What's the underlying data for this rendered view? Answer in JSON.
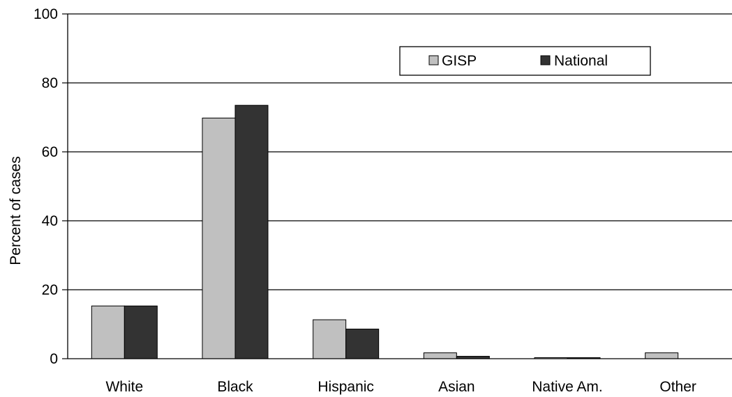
{
  "chart_data": {
    "type": "bar",
    "title": "",
    "xlabel": "",
    "ylabel": "Percent of cases",
    "ylim": [
      0,
      100
    ],
    "yticks": [
      0,
      20,
      40,
      60,
      80,
      100
    ],
    "grid": true,
    "legend_position": "top-right",
    "categories": [
      "White",
      "Black",
      "Hispanic",
      "Asian",
      "Native Am.",
      "Other"
    ],
    "series": [
      {
        "name": "GISP",
        "color": "#c0c0c0",
        "values": [
          15.3,
          69.8,
          11.3,
          1.7,
          0.3,
          1.7
        ]
      },
      {
        "name": "National",
        "color": "#333333",
        "values": [
          15.3,
          73.5,
          8.6,
          0.7,
          0.3,
          0
        ]
      }
    ]
  }
}
